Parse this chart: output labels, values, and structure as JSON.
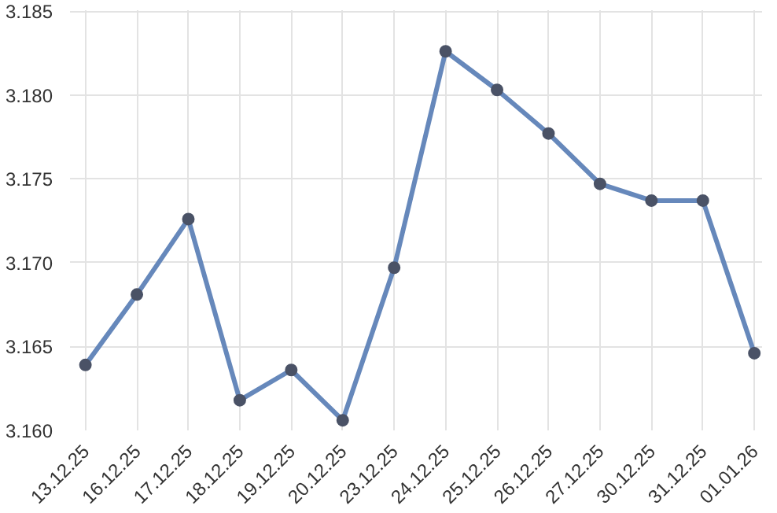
{
  "chart_data": {
    "type": "line",
    "categories": [
      "13.12.25",
      "16.12.25",
      "17.12.25",
      "18.12.25",
      "19.12.25",
      "20.12.25",
      "23.12.25",
      "24.12.25",
      "25.12.25",
      "26.12.25",
      "27.12.25",
      "30.12.25",
      "31.12.25",
      "01.01.26"
    ],
    "series": [
      {
        "color": "#6688bb",
        "values": [
          3.1639,
          3.1681,
          3.1726,
          3.1618,
          3.1636,
          3.1606,
          3.1697,
          3.1826,
          3.1803,
          3.1777,
          3.1747,
          3.1737,
          3.1737,
          3.1646
        ]
      }
    ],
    "ylim": [
      3.16,
      3.185
    ],
    "yticks": [
      {
        "value": 3.16,
        "label": "3.160"
      },
      {
        "value": 3.165,
        "label": "3.165"
      },
      {
        "value": 3.17,
        "label": "3.170"
      },
      {
        "value": 3.175,
        "label": "3.175"
      },
      {
        "value": 3.18,
        "label": "3.180"
      },
      {
        "value": 3.185,
        "label": "3.185"
      }
    ],
    "grid": true,
    "marker": "circle",
    "line_style": "solid"
  }
}
